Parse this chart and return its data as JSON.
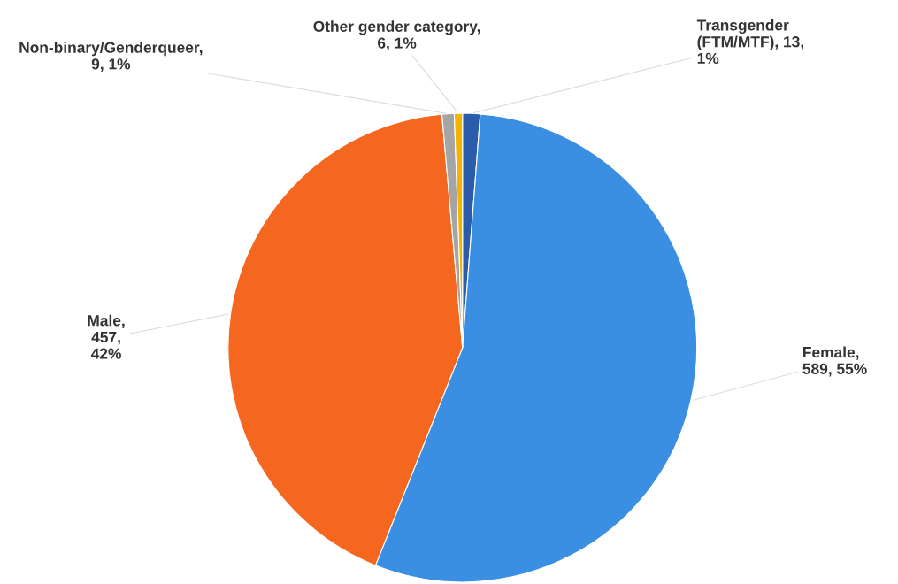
{
  "chart_data": {
    "type": "pie",
    "categories": [
      "Transgender (FTM/MTF)",
      "Female",
      "Male",
      "Non-binary/Genderqueer",
      "Other gender category"
    ],
    "values": [
      13,
      589,
      457,
      9,
      6
    ],
    "colors": [
      "#2a5caa",
      "#3b8fe3",
      "#f5661e",
      "#a5a5a5",
      "#f2b400"
    ],
    "value_labels": [
      ", 13, 1%",
      ", 589, 55%",
      ", 457, 42%",
      ", 9, 1%",
      ", 6, 1%"
    ],
    "legend": false
  }
}
